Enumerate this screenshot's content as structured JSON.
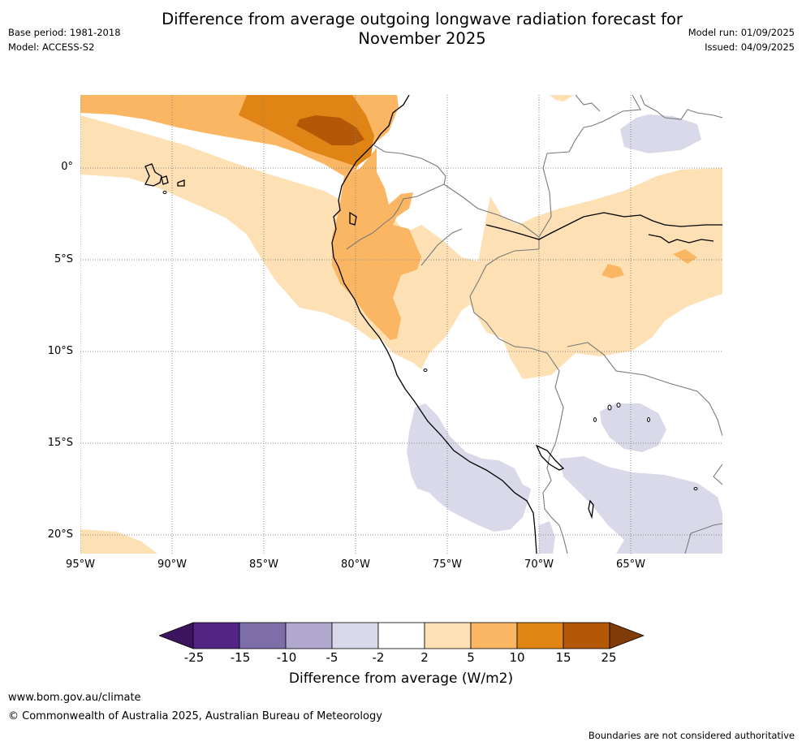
{
  "title": "Difference from average outgoing longwave radiation forecast for November 2025",
  "meta": {
    "base_period": "Base period: 1981-2018",
    "model": "Model: ACCESS-S2",
    "model_run": "Model run: 01/09/2025",
    "issued": "Issued: 04/09/2025"
  },
  "axes": {
    "lat_labels": [
      "0°",
      "5°S",
      "10°S",
      "15°S",
      "20°S"
    ],
    "lon_labels": [
      "95°W",
      "90°W",
      "85°W",
      "80°W",
      "75°W",
      "70°W",
      "65°W"
    ]
  },
  "colorbar": {
    "title": "Difference from average (W/m2)",
    "ticks": [
      "-25",
      "-15",
      "-10",
      "-5",
      "-2",
      "2",
      "5",
      "10",
      "15",
      "25"
    ],
    "colors": [
      "#3d1460",
      "#532587",
      "#7d6eaa",
      "#b1a8d0",
      "#d9d9ea",
      "#ffffff",
      "#fde0b4",
      "#fbb663",
      "#e08515",
      "#b35806",
      "#7f3b08"
    ]
  },
  "footer": {
    "url": "www.bom.gov.au/climate",
    "copyright": "© Commonwealth of Australia 2025, Australian Bureau of Meteorology",
    "disclaimer": "Boundaries are not considered authoritative"
  }
}
